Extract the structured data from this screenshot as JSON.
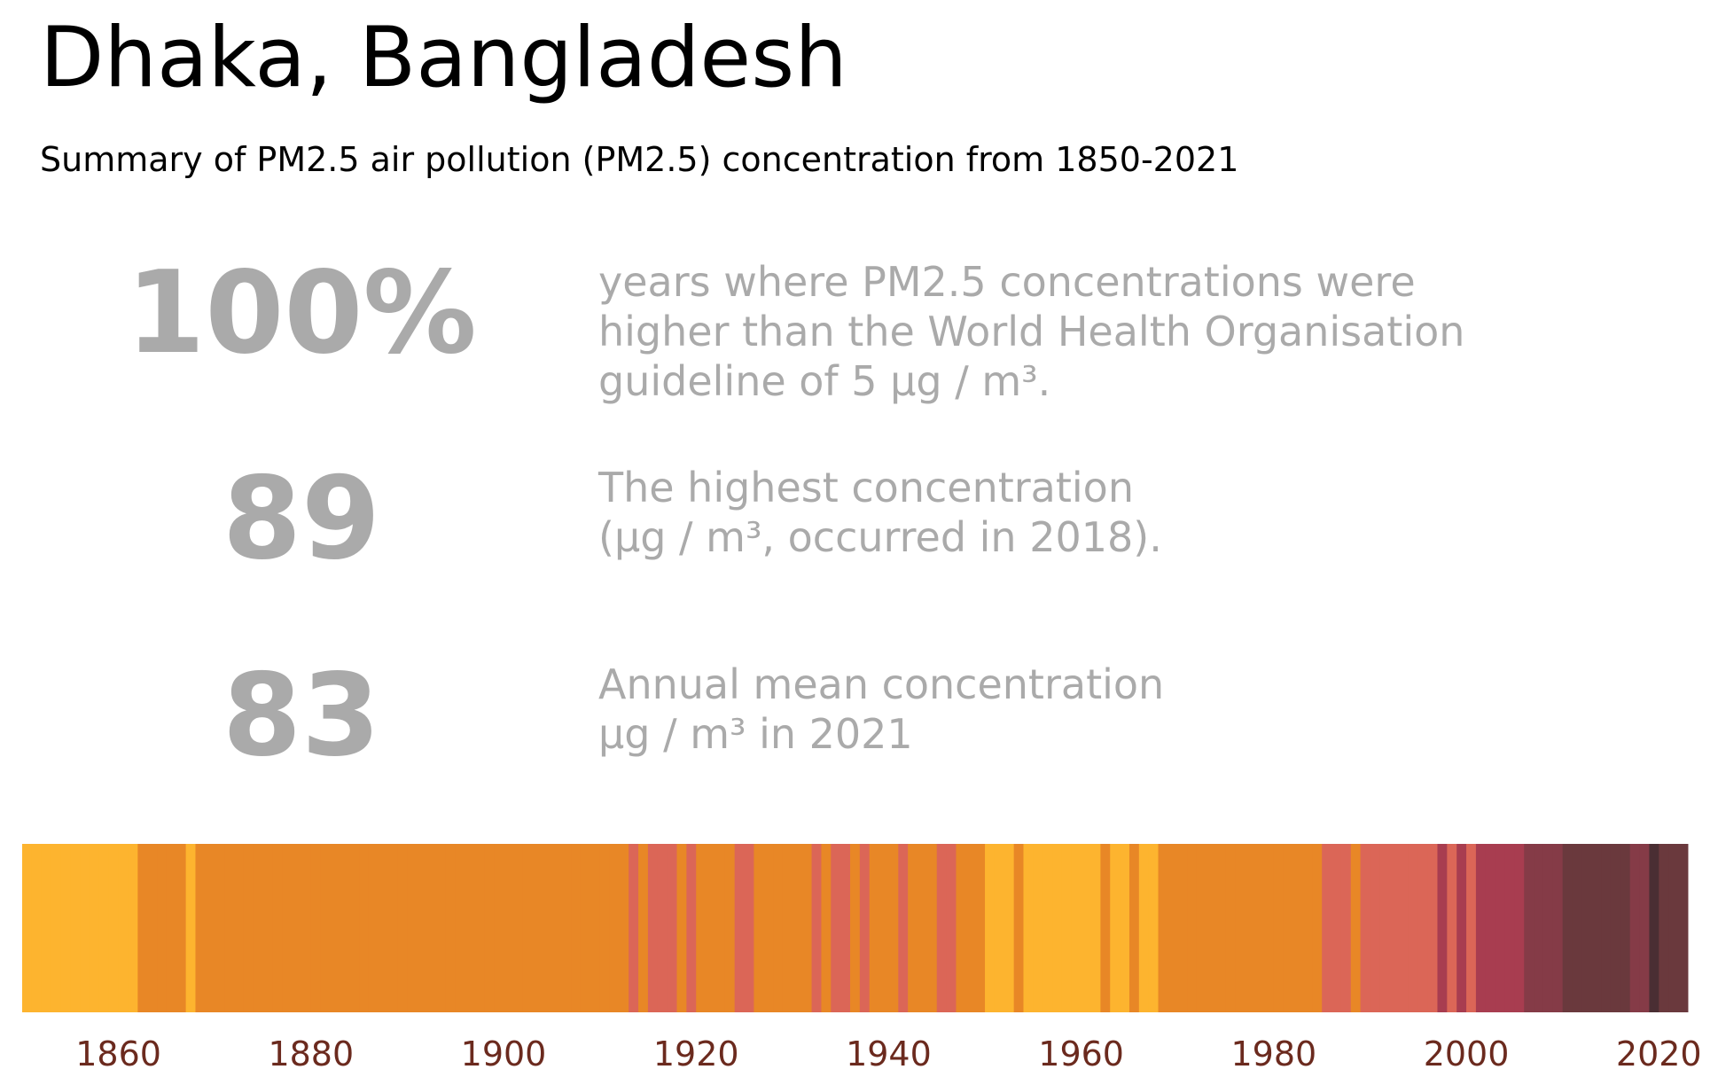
{
  "title": "Dhaka, Bangladesh",
  "subtitle": "Summary of PM2.5 air pollution (PM2.5) concentration from 1850-2021",
  "stats": [
    {
      "value": "100%",
      "lines": [
        "years where PM2.5 concentrations were",
        "higher than the World Health Organisation",
        "guideline of 5 µg / m³."
      ]
    },
    {
      "value": "89",
      "lines": [
        "The highest concentration",
        "(µg / m³, occurred in 2018)."
      ]
    },
    {
      "value": "83",
      "lines": [
        "Annual mean concentration",
        "µg / m³ in 2021"
      ]
    }
  ],
  "colors": {
    "stat_text": "#aaaaaa",
    "tick_label": "#6b2a1e",
    "level_1": "#fdb42f",
    "level_2": "#e88726",
    "level_3": "#db6657",
    "level_4": "#a83d50",
    "level_5": "#853b47",
    "level_6": "#6a393d",
    "level_7": "#4a2e33"
  },
  "chart_data": {
    "type": "heatmap",
    "xlim": [
      1850,
      2022
    ],
    "x_ticks": [
      "1860",
      "1880",
      "1900",
      "1920",
      "1940",
      "1960",
      "1980",
      "2000",
      "2020"
    ],
    "color_levels": [
      "level_1",
      "level_2",
      "level_3",
      "level_4",
      "level_5",
      "level_6",
      "level_7"
    ],
    "years_start": 1850,
    "years_end": 2021,
    "year_levels": [
      1,
      1,
      1,
      1,
      1,
      1,
      1,
      1,
      1,
      1,
      1,
      1,
      2,
      2,
      2,
      2,
      2,
      1,
      2,
      2,
      2,
      2,
      2,
      2,
      2,
      2,
      2,
      2,
      2,
      2,
      2,
      2,
      2,
      2,
      2,
      2,
      2,
      2,
      2,
      2,
      2,
      2,
      2,
      2,
      2,
      2,
      2,
      2,
      2,
      2,
      2,
      2,
      2,
      2,
      2,
      2,
      2,
      2,
      2,
      2,
      2,
      2,
      2,
      3,
      2,
      3,
      3,
      3,
      2,
      3,
      2,
      2,
      2,
      2,
      3,
      3,
      2,
      2,
      2,
      2,
      2,
      2,
      3,
      2,
      3,
      3,
      2,
      3,
      2,
      2,
      2,
      3,
      2,
      2,
      2,
      3,
      3,
      2,
      2,
      2,
      1,
      1,
      1,
      2,
      1,
      1,
      1,
      1,
      1,
      1,
      1,
      1,
      2,
      1,
      1,
      2,
      1,
      1,
      2,
      2,
      2,
      2,
      2,
      2,
      2,
      2,
      2,
      2,
      2,
      2,
      2,
      2,
      2,
      2,
      2,
      3,
      3,
      3,
      2,
      3,
      3,
      3,
      3,
      3,
      3,
      3,
      3,
      4,
      3,
      4,
      3,
      4,
      4,
      4,
      4,
      4,
      5,
      5,
      5,
      5,
      6,
      6,
      6,
      6,
      6,
      6,
      6,
      5,
      5,
      7,
      6,
      6,
      6
    ]
  }
}
